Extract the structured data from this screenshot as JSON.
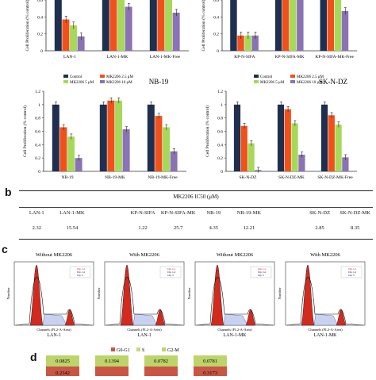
{
  "panel_labels": {
    "b": "b",
    "c": "c",
    "d": "d"
  },
  "colors": {
    "control": "#1f2f4f",
    "mk25": "#f0511c",
    "mk5": "#a6d95a",
    "mk10": "#8a72b3",
    "g0g1": "#c95545",
    "s": "#c7d486",
    "g2m": "#bcd46a"
  },
  "chart_data": [
    {
      "type": "bar",
      "title": "",
      "ylabel": "Cell Proliferation (% control)",
      "categories": [
        "LAN-1",
        "LAN-1-MK",
        "LAN-1-MK-Free"
      ],
      "ylim": [
        0,
        1.2
      ],
      "series": [
        {
          "name": "Control",
          "values": [
            1.0,
            1.0,
            1.0
          ]
        },
        {
          "name": "MK2206 2.5 μM",
          "values": [
            0.37,
            1.0,
            1.0
          ]
        },
        {
          "name": "MK2206 5 μM",
          "values": [
            0.3,
            0.95,
            0.95
          ]
        },
        {
          "name": "MK2206 10 μM",
          "values": [
            0.17,
            0.52,
            0.45
          ]
        }
      ]
    },
    {
      "type": "bar",
      "title": "",
      "ylabel": "Cell Proliferation (% control)",
      "categories": [
        "KP-N-SIFA",
        "KP-N-SIFA-MK",
        "KP-N-SIFA-MK-Free"
      ],
      "ylim": [
        0,
        1.2
      ],
      "series": [
        {
          "name": "Control",
          "values": [
            1.0,
            1.0,
            1.0
          ]
        },
        {
          "name": "MK2206 2.5 μM",
          "values": [
            0.18,
            1.0,
            0.97
          ]
        },
        {
          "name": "MK2206 5 μM",
          "values": [
            0.18,
            0.97,
            0.93
          ]
        },
        {
          "name": "MK2206 10 μM",
          "values": [
            0.18,
            0.87,
            0.47
          ]
        }
      ]
    },
    {
      "type": "bar",
      "title": "NB-19",
      "ylabel": "Cell Proliferation (% control)",
      "categories": [
        "NB-19",
        "NB-19-MK",
        "NB-19-MK-Free"
      ],
      "ylim": [
        0,
        1.2
      ],
      "yticks": [
        "0",
        "0.2",
        "0.4",
        "0.6",
        "0.8",
        "1",
        "1.2"
      ],
      "legend": [
        "Control",
        "MK2206 2.5 μM",
        "MK2206 5 μM",
        "MK2206 10 μM"
      ],
      "series": [
        {
          "name": "Control",
          "values": [
            1.0,
            1.0,
            1.0
          ]
        },
        {
          "name": "MK2206 2.5 μM",
          "values": [
            0.66,
            1.06,
            0.83
          ]
        },
        {
          "name": "MK2206 5 μM",
          "values": [
            0.52,
            1.06,
            0.66
          ]
        },
        {
          "name": "MK2206 10 μM",
          "values": [
            0.2,
            0.63,
            0.3
          ]
        }
      ]
    },
    {
      "type": "bar",
      "title": "SK-N-DZ",
      "ylabel": "Cell Proliferation (% control)",
      "categories": [
        "SK-N-DZ",
        "SK-N-DZ-MK",
        "SK-N-DZ-MK-Free"
      ],
      "ylim": [
        0,
        1.2
      ],
      "yticks": [
        "0",
        "0.2",
        "0.4",
        "0.6",
        "0.8",
        "1",
        "1.2"
      ],
      "legend": [
        "Control",
        "MK2206 2.5 μM",
        "MK2206 5 μM",
        "MK2206 10 μM"
      ],
      "series": [
        {
          "name": "Control",
          "values": [
            1.0,
            1.0,
            1.0
          ]
        },
        {
          "name": "MK2206 2.5 μM",
          "values": [
            0.68,
            0.93,
            0.84
          ]
        },
        {
          "name": "MK2206 5 μM",
          "values": [
            0.42,
            0.72,
            0.7
          ]
        },
        {
          "name": "MK2206 10 μM",
          "values": [
            0.02,
            0.25,
            0.21
          ]
        }
      ]
    }
  ],
  "table": {
    "header": "MK2206 IC50 (μM)",
    "columns": [
      "LAN-1",
      "LAN-1-MK",
      "KP-N-SIFA",
      "KP-N-SIFA-MK",
      "NB-19",
      "NB-19-MK",
      "SK-N-DZ",
      "SK-N-DZ-MK"
    ],
    "values": [
      "2.32",
      "15.54",
      "1.22",
      "25.7",
      "4.35",
      "12.21",
      "2.85",
      "8.35"
    ]
  },
  "flow": {
    "panels": [
      {
        "title": "Without MK2206",
        "xlabel": "LAN-1"
      },
      {
        "title": "With MK2206",
        "xlabel": "LAN-1"
      },
      {
        "title": "Without MK2206",
        "xlabel": "LAN-1-MK"
      },
      {
        "title": "With MK2206",
        "xlabel": "LAN-1-MK"
      }
    ],
    "channel_label": "Channels (FL2-A-Area)",
    "ylabel": "Number",
    "legend_lines": [
      "Dip G1",
      "Dip G2",
      "Dip S"
    ]
  },
  "stack_legend": [
    "G0-G1",
    "S",
    "G2-M"
  ],
  "stack_values": [
    "0.0825",
    "0.1394",
    "0.0782",
    "0.0781",
    "0.2342",
    "0.3173"
  ]
}
